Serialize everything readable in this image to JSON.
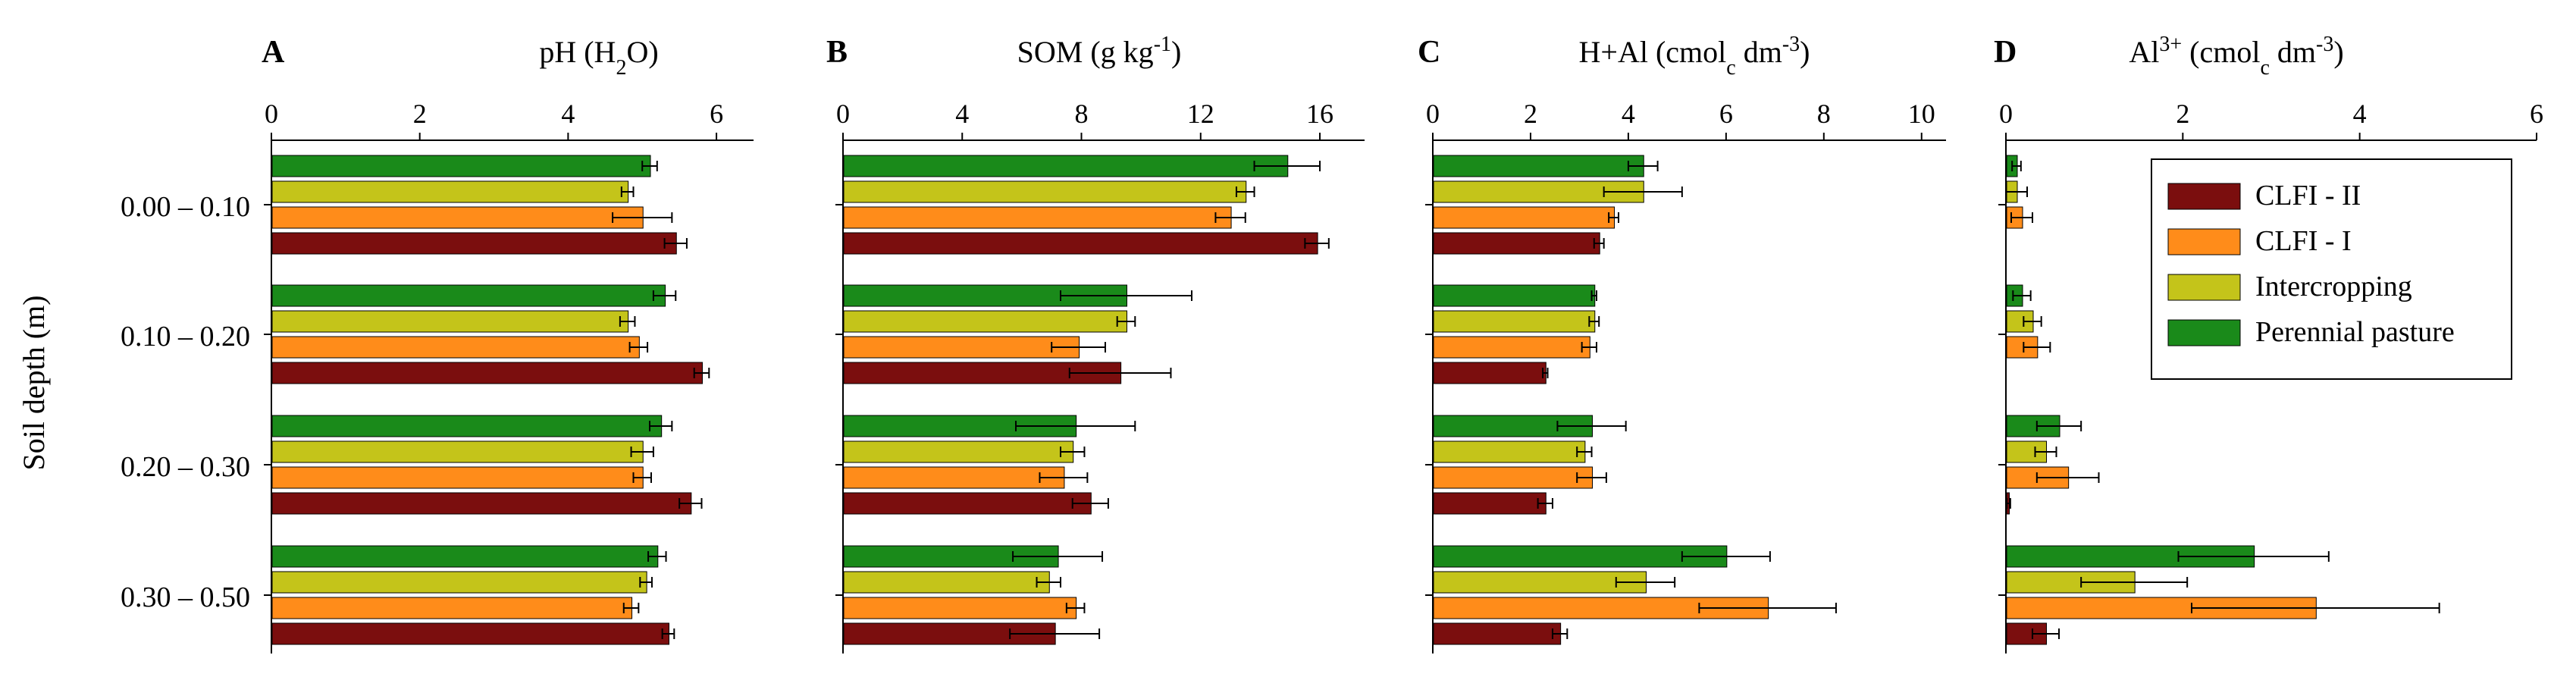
{
  "figure": {
    "ylabel": "Soil depth (m)",
    "depths": [
      "0.00 – 0.10",
      "0.10 – 0.20",
      "0.20 – 0.30",
      "0.30 – 0.50"
    ]
  },
  "legend": {
    "position": "top-right",
    "entries": [
      {
        "name": "CLFI - II",
        "color": "#7b0e0e"
      },
      {
        "name": "CLFI - I",
        "color": "#ff8c1a"
      },
      {
        "name": "Intercropping",
        "color": "#c4c41a"
      },
      {
        "name": "Perennial pasture",
        "color": "#1a8a1a"
      }
    ]
  },
  "series_order": [
    "Perennial pasture",
    "Intercropping",
    "CLFI - I",
    "CLFI - II"
  ],
  "colors": {
    "Perennial pasture": "#1a8a1a",
    "Intercropping": "#c4c41a",
    "CLFI - I": "#ff8c1a",
    "CLFI - II": "#7b0e0e"
  },
  "chart_data": [
    {
      "type": "bar",
      "panel": "A",
      "title_html": "pH (H<tspan baseline-shift=\"sub\" font-size=\"70%\">2</tspan>O)",
      "title_text": "pH (H2O)",
      "xlim": [
        0,
        6.5
      ],
      "xticks": [
        0,
        2,
        4,
        6
      ],
      "categories": [
        "0.00 – 0.10",
        "0.10 – 0.20",
        "0.20 – 0.30",
        "0.30 – 0.50"
      ],
      "series": [
        {
          "name": "Perennial pasture",
          "values": [
            5.1,
            5.3,
            5.25,
            5.2
          ],
          "errors": [
            0.1,
            0.15,
            0.15,
            0.12
          ]
        },
        {
          "name": "Intercropping",
          "values": [
            4.8,
            4.8,
            5.0,
            5.05
          ],
          "errors": [
            0.08,
            0.1,
            0.15,
            0.08
          ]
        },
        {
          "name": "CLFI - I",
          "values": [
            5.0,
            4.95,
            5.0,
            4.85
          ],
          "errors": [
            0.4,
            0.12,
            0.12,
            0.1
          ]
        },
        {
          "name": "CLFI - II",
          "values": [
            5.45,
            5.8,
            5.65,
            5.35
          ],
          "errors": [
            0.15,
            0.1,
            0.15,
            0.08
          ]
        }
      ]
    },
    {
      "type": "bar",
      "panel": "B",
      "title_html": "SOM (g kg<tspan baseline-shift=\"super\" font-size=\"70%\">-1</tspan>)",
      "title_text": "SOM (g kg-1)",
      "xlim": [
        0,
        17.5
      ],
      "xticks": [
        0,
        4,
        8,
        12,
        16
      ],
      "categories": [
        "0.00 – 0.10",
        "0.10 – 0.20",
        "0.20 – 0.30",
        "0.30 – 0.50"
      ],
      "series": [
        {
          "name": "Perennial pasture",
          "values": [
            14.9,
            9.5,
            7.8,
            7.2
          ],
          "errors": [
            1.1,
            2.2,
            2.0,
            1.5
          ]
        },
        {
          "name": "Intercropping",
          "values": [
            13.5,
            9.5,
            7.7,
            6.9
          ],
          "errors": [
            0.3,
            0.3,
            0.4,
            0.4
          ]
        },
        {
          "name": "CLFI - I",
          "values": [
            13.0,
            7.9,
            7.4,
            7.8
          ],
          "errors": [
            0.5,
            0.9,
            0.8,
            0.3
          ]
        },
        {
          "name": "CLFI - II",
          "values": [
            15.9,
            9.3,
            8.3,
            7.1
          ],
          "errors": [
            0.4,
            1.7,
            0.6,
            1.5
          ]
        }
      ]
    },
    {
      "type": "bar",
      "panel": "C",
      "title_html": "H+Al (cmol<tspan baseline-shift=\"sub\" font-size=\"70%\">c</tspan> dm<tspan baseline-shift=\"super\" font-size=\"70%\">-3</tspan>)",
      "title_text": "H+Al (cmolc dm-3)",
      "xlim": [
        0,
        10.5
      ],
      "xticks": [
        0,
        2,
        4,
        6,
        8,
        10
      ],
      "categories": [
        "0.00 – 0.10",
        "0.10 – 0.20",
        "0.20 – 0.30",
        "0.30 – 0.50"
      ],
      "series": [
        {
          "name": "Perennial pasture",
          "values": [
            4.3,
            3.3,
            3.25,
            6.0
          ],
          "errors": [
            0.3,
            0.05,
            0.7,
            0.9
          ]
        },
        {
          "name": "Intercropping",
          "values": [
            4.3,
            3.3,
            3.1,
            4.35
          ],
          "errors": [
            0.8,
            0.1,
            0.15,
            0.6
          ]
        },
        {
          "name": "CLFI - I",
          "values": [
            3.7,
            3.2,
            3.25,
            6.85
          ],
          "errors": [
            0.1,
            0.15,
            0.3,
            1.4
          ]
        },
        {
          "name": "CLFI - II",
          "values": [
            3.4,
            2.3,
            2.3,
            2.6
          ],
          "errors": [
            0.1,
            0.05,
            0.15,
            0.15
          ]
        }
      ]
    },
    {
      "type": "bar",
      "panel": "D",
      "title_html": "Al<tspan baseline-shift=\"super\" font-size=\"70%\">3+</tspan> (cmol<tspan baseline-shift=\"sub\" font-size=\"70%\">c</tspan> dm<tspan baseline-shift=\"super\" font-size=\"70%\">-3</tspan>)",
      "title_text": "Al3+ (cmolc dm-3)",
      "xlim": [
        0,
        6
      ],
      "xticks": [
        0,
        2,
        4,
        6
      ],
      "categories": [
        "0.00 – 0.10",
        "0.10 – 0.20",
        "0.20 – 0.30",
        "0.30 – 0.50"
      ],
      "series": [
        {
          "name": "Perennial pasture",
          "values": [
            0.12,
            0.18,
            0.6,
            2.8
          ],
          "errors": [
            0.05,
            0.1,
            0.25,
            0.85
          ]
        },
        {
          "name": "Intercropping",
          "values": [
            0.12,
            0.3,
            0.45,
            1.45
          ],
          "errors": [
            0.12,
            0.1,
            0.12,
            0.6
          ]
        },
        {
          "name": "CLFI - I",
          "values": [
            0.18,
            0.35,
            0.7,
            3.5
          ],
          "errors": [
            0.12,
            0.15,
            0.35,
            1.4
          ]
        },
        {
          "name": "CLFI - II",
          "values": [
            0.0,
            0.0,
            0.03,
            0.45
          ],
          "errors": [
            0.0,
            0.0,
            0.02,
            0.15
          ]
        }
      ]
    }
  ]
}
